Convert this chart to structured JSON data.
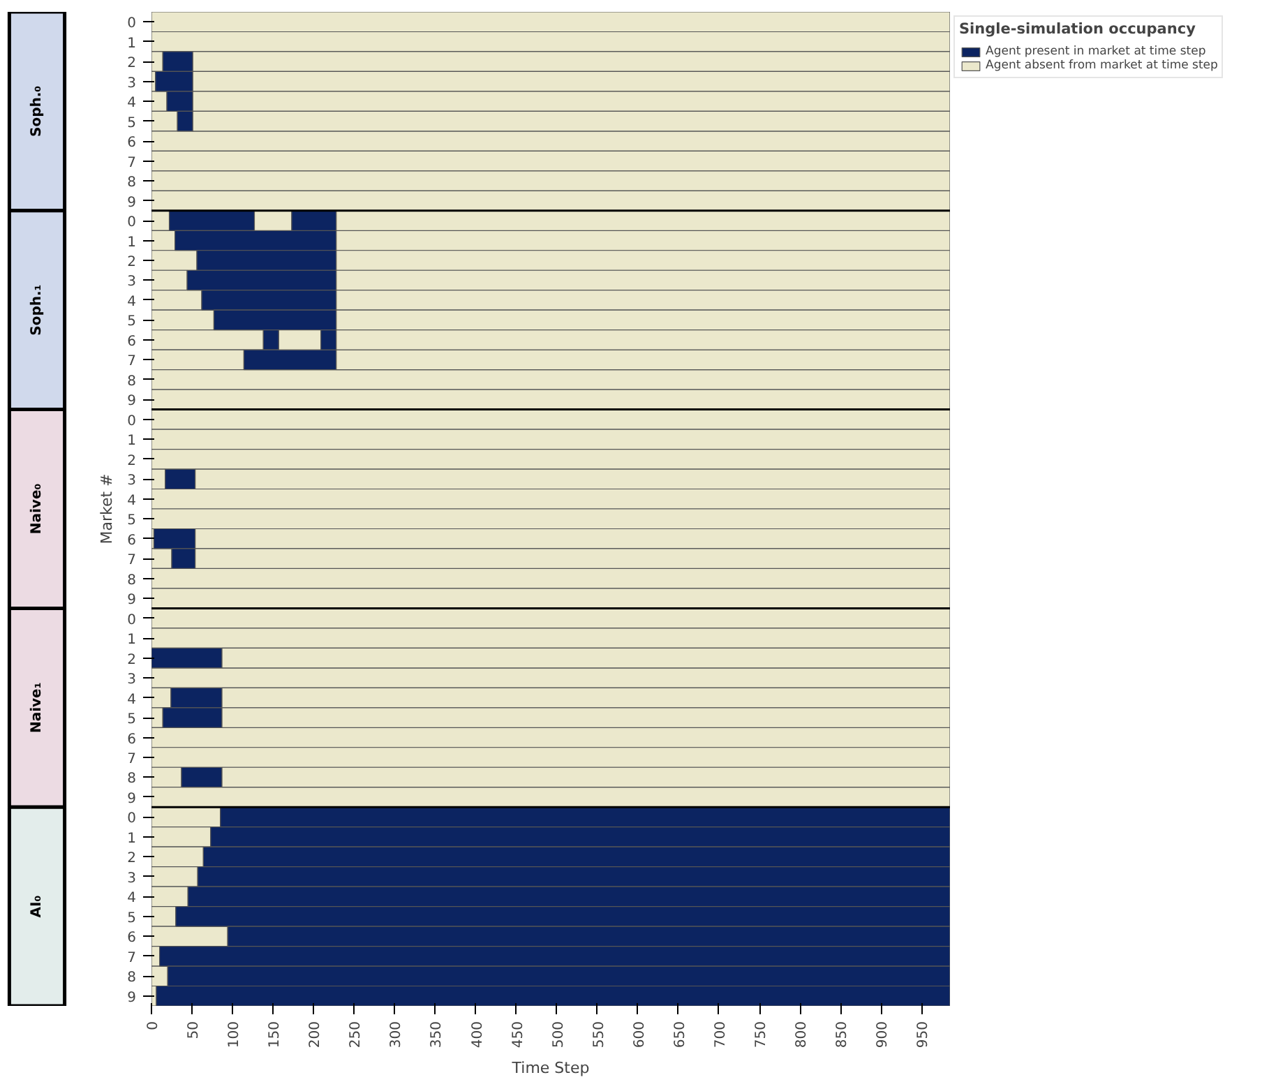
{
  "chart_data": {
    "type": "bar",
    "orientation": "horizontal",
    "stacked": true,
    "xlabel": "Time Step",
    "ylabel": "Market #",
    "legend_title": "Single-simulation occupancy",
    "legend": "top right",
    "annotations": [
      "Soph.₀",
      "Soph.₁",
      "Naive₀",
      "Naive₁",
      "AI₀"
    ],
    "categories": [
      "0",
      "1",
      "2",
      "3",
      "4",
      "5",
      "6",
      "7",
      "8",
      "9",
      "0",
      "1",
      "2",
      "3",
      "4",
      "5",
      "6",
      "7",
      "8",
      "9",
      "0",
      "1",
      "2",
      "3",
      "4",
      "5",
      "6",
      "7",
      "8",
      "9",
      "0",
      "1",
      "2",
      "3",
      "4",
      "5",
      "6",
      "7",
      "8",
      "9",
      "0",
      "1",
      "2",
      "3",
      "4",
      "5",
      "6",
      "7",
      "8",
      "9"
    ],
    "xlim": [
      0,
      985
    ],
    "xticks": [
      0,
      50,
      100,
      150,
      200,
      250,
      300,
      350,
      400,
      450,
      500,
      550,
      600,
      650,
      700,
      750,
      800,
      850,
      900,
      950
    ],
    "series": [
      {
        "name": "Agent absent from market at time step",
        "color": "#ebe8cc",
        "values": [
          985,
          985,
          14,
          5,
          19,
          32,
          985,
          985,
          985,
          985,
          22,
          29,
          56,
          44,
          62,
          77,
          138,
          114,
          985,
          985,
          985,
          985,
          985,
          17,
          985,
          985,
          3,
          25,
          985,
          985,
          985,
          985,
          null,
          985,
          24,
          14,
          985,
          985,
          37,
          985,
          85,
          73,
          64,
          57,
          45,
          30,
          94,
          10,
          20,
          6
        ]
      },
      {
        "name": "Agent present in market at time step",
        "color": "#0c2461",
        "values": [
          null,
          null,
          37,
          46,
          32,
          19,
          null,
          null,
          null,
          null,
          105,
          199,
          172,
          184,
          166,
          151,
          19,
          114,
          null,
          null,
          null,
          null,
          null,
          37,
          null,
          null,
          51,
          29,
          null,
          null,
          null,
          null,
          87,
          null,
          63,
          73,
          null,
          null,
          50,
          null,
          900,
          912,
          921,
          928,
          940,
          955,
          891,
          975,
          965,
          979
        ]
      },
      {
        "color": "#ebe8cc",
        "values": [
          null,
          null,
          934,
          934,
          934,
          934,
          null,
          null,
          null,
          null,
          46,
          757,
          757,
          757,
          757,
          757,
          52,
          757,
          null,
          null,
          null,
          null,
          null,
          931,
          null,
          null,
          931,
          931,
          null,
          null,
          null,
          null,
          898,
          null,
          898,
          898,
          null,
          null,
          898,
          null,
          null,
          null,
          null,
          null,
          null,
          null,
          null,
          null,
          null,
          null
        ]
      },
      {
        "color": "#0c2461",
        "values": [
          null,
          null,
          null,
          null,
          null,
          null,
          null,
          null,
          null,
          null,
          55,
          null,
          null,
          null,
          null,
          null,
          19,
          null,
          null,
          null,
          null,
          null,
          null,
          null,
          null,
          null,
          null,
          null,
          null,
          null,
          null,
          null,
          null,
          null,
          null,
          null,
          null,
          null,
          null,
          null,
          null,
          null,
          null,
          null,
          null,
          null,
          null,
          null,
          null,
          null
        ]
      },
      {
        "color": "#ebe8cc",
        "values": [
          null,
          null,
          null,
          null,
          null,
          null,
          null,
          null,
          null,
          null,
          757,
          null,
          null,
          null,
          null,
          null,
          757,
          null,
          null,
          null,
          null,
          null,
          null,
          null,
          null,
          null,
          null,
          null,
          null,
          null,
          null,
          null,
          null,
          null,
          null,
          null,
          null,
          null,
          null,
          null,
          null,
          null,
          null,
          null,
          null,
          null,
          null,
          null,
          null,
          null
        ]
      }
    ]
  }
}
